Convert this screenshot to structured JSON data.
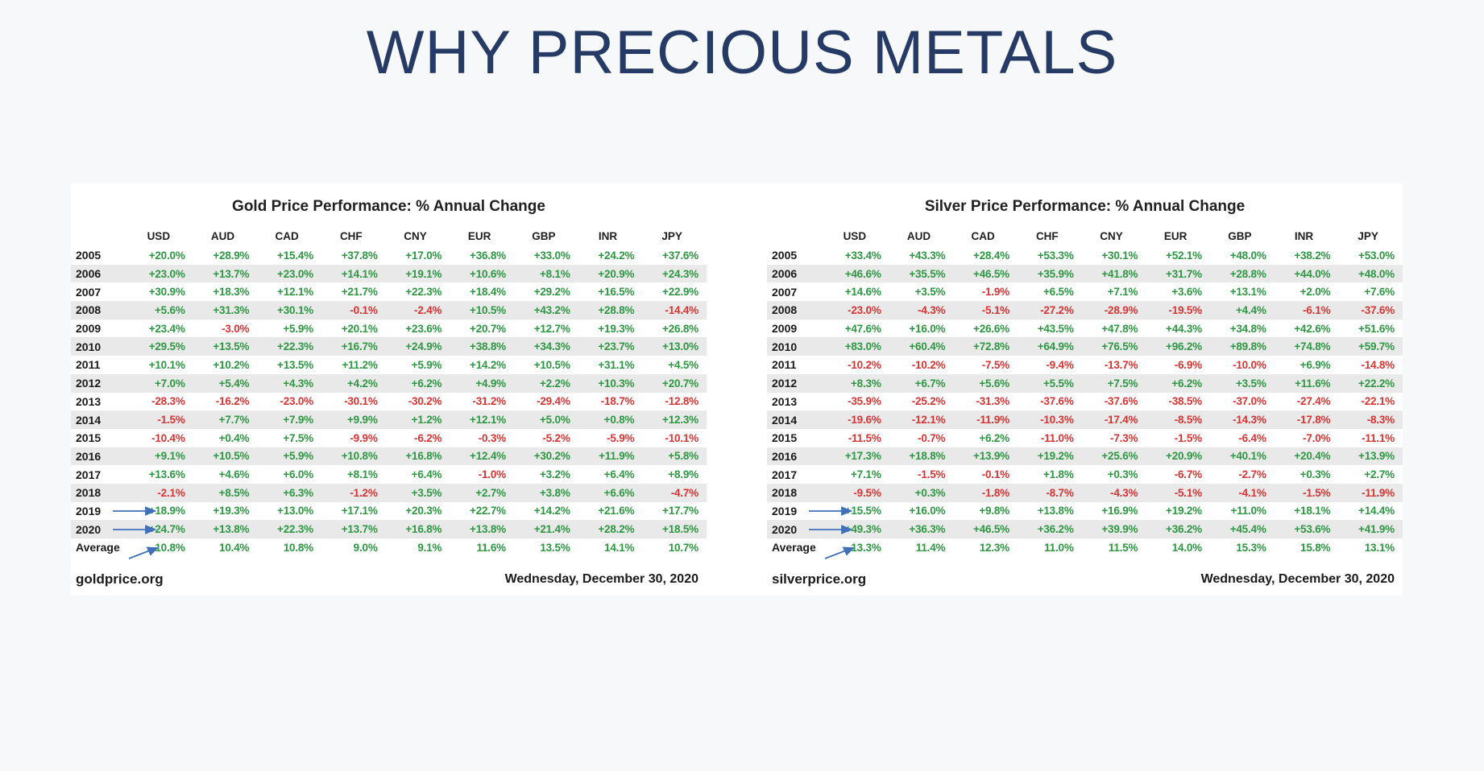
{
  "page": {
    "title": "WHY PRECIOUS METALS",
    "title_color": "#263a66",
    "background_color": "#f7f8fa",
    "panel_color": "#ffffff"
  },
  "colors": {
    "positive_value": "#2d9742",
    "negative_value": "#d93434",
    "row_stripe": "#e9e9e9",
    "annotation_arrow": "#4170b8"
  },
  "annotations": {
    "arrow_rows": [
      "2019",
      "2020",
      "Average"
    ]
  },
  "chart_data": [
    {
      "type": "table",
      "id": "gold",
      "title": "Gold Price Performance: % Annual Change",
      "source": "goldprice.org",
      "date": "Wednesday, December 30, 2020",
      "columns": [
        "USD",
        "AUD",
        "CAD",
        "CHF",
        "CNY",
        "EUR",
        "GBP",
        "INR",
        "JPY"
      ],
      "row_labels": [
        "2005",
        "2006",
        "2007",
        "2008",
        "2009",
        "2010",
        "2011",
        "2012",
        "2013",
        "2014",
        "2015",
        "2016",
        "2017",
        "2018",
        "2019",
        "2020",
        "Average"
      ],
      "rows": [
        [
          "+20.0%",
          "+28.9%",
          "+15.4%",
          "+37.8%",
          "+17.0%",
          "+36.8%",
          "+33.0%",
          "+24.2%",
          "+37.6%"
        ],
        [
          "+23.0%",
          "+13.7%",
          "+23.0%",
          "+14.1%",
          "+19.1%",
          "+10.6%",
          "+8.1%",
          "+20.9%",
          "+24.3%"
        ],
        [
          "+30.9%",
          "+18.3%",
          "+12.1%",
          "+21.7%",
          "+22.3%",
          "+18.4%",
          "+29.2%",
          "+16.5%",
          "+22.9%"
        ],
        [
          "+5.6%",
          "+31.3%",
          "+30.1%",
          "-0.1%",
          "-2.4%",
          "+10.5%",
          "+43.2%",
          "+28.8%",
          "-14.4%"
        ],
        [
          "+23.4%",
          "-3.0%",
          "+5.9%",
          "+20.1%",
          "+23.6%",
          "+20.7%",
          "+12.7%",
          "+19.3%",
          "+26.8%"
        ],
        [
          "+29.5%",
          "+13.5%",
          "+22.3%",
          "+16.7%",
          "+24.9%",
          "+38.8%",
          "+34.3%",
          "+23.7%",
          "+13.0%"
        ],
        [
          "+10.1%",
          "+10.2%",
          "+13.5%",
          "+11.2%",
          "+5.9%",
          "+14.2%",
          "+10.5%",
          "+31.1%",
          "+4.5%"
        ],
        [
          "+7.0%",
          "+5.4%",
          "+4.3%",
          "+4.2%",
          "+6.2%",
          "+4.9%",
          "+2.2%",
          "+10.3%",
          "+20.7%"
        ],
        [
          "-28.3%",
          "-16.2%",
          "-23.0%",
          "-30.1%",
          "-30.2%",
          "-31.2%",
          "-29.4%",
          "-18.7%",
          "-12.8%"
        ],
        [
          "-1.5%",
          "+7.7%",
          "+7.9%",
          "+9.9%",
          "+1.2%",
          "+12.1%",
          "+5.0%",
          "+0.8%",
          "+12.3%"
        ],
        [
          "-10.4%",
          "+0.4%",
          "+7.5%",
          "-9.9%",
          "-6.2%",
          "-0.3%",
          "-5.2%",
          "-5.9%",
          "-10.1%"
        ],
        [
          "+9.1%",
          "+10.5%",
          "+5.9%",
          "+10.8%",
          "+16.8%",
          "+12.4%",
          "+30.2%",
          "+11.9%",
          "+5.8%"
        ],
        [
          "+13.6%",
          "+4.6%",
          "+6.0%",
          "+8.1%",
          "+6.4%",
          "-1.0%",
          "+3.2%",
          "+6.4%",
          "+8.9%"
        ],
        [
          "-2.1%",
          "+8.5%",
          "+6.3%",
          "-1.2%",
          "+3.5%",
          "+2.7%",
          "+3.8%",
          "+6.6%",
          "-4.7%"
        ],
        [
          "+18.9%",
          "+19.3%",
          "+13.0%",
          "+17.1%",
          "+20.3%",
          "+22.7%",
          "+14.2%",
          "+21.6%",
          "+17.7%"
        ],
        [
          "+24.7%",
          "+13.8%",
          "+22.3%",
          "+13.7%",
          "+16.8%",
          "+13.8%",
          "+21.4%",
          "+28.2%",
          "+18.5%"
        ],
        [
          "10.8%",
          "10.4%",
          "10.8%",
          "9.0%",
          "9.1%",
          "11.6%",
          "13.5%",
          "14.1%",
          "10.7%"
        ]
      ]
    },
    {
      "type": "table",
      "id": "silver",
      "title": "Silver Price Performance: % Annual Change",
      "source": "silverprice.org",
      "date": "Wednesday, December 30, 2020",
      "columns": [
        "USD",
        "AUD",
        "CAD",
        "CHF",
        "CNY",
        "EUR",
        "GBP",
        "INR",
        "JPY"
      ],
      "row_labels": [
        "2005",
        "2006",
        "2007",
        "2008",
        "2009",
        "2010",
        "2011",
        "2012",
        "2013",
        "2014",
        "2015",
        "2016",
        "2017",
        "2018",
        "2019",
        "2020",
        "Average"
      ],
      "rows": [
        [
          "+33.4%",
          "+43.3%",
          "+28.4%",
          "+53.3%",
          "+30.1%",
          "+52.1%",
          "+48.0%",
          "+38.2%",
          "+53.0%"
        ],
        [
          "+46.6%",
          "+35.5%",
          "+46.5%",
          "+35.9%",
          "+41.8%",
          "+31.7%",
          "+28.8%",
          "+44.0%",
          "+48.0%"
        ],
        [
          "+14.6%",
          "+3.5%",
          "-1.9%",
          "+6.5%",
          "+7.1%",
          "+3.6%",
          "+13.1%",
          "+2.0%",
          "+7.6%"
        ],
        [
          "-23.0%",
          "-4.3%",
          "-5.1%",
          "-27.2%",
          "-28.9%",
          "-19.5%",
          "+4.4%",
          "-6.1%",
          "-37.6%"
        ],
        [
          "+47.6%",
          "+16.0%",
          "+26.6%",
          "+43.5%",
          "+47.8%",
          "+44.3%",
          "+34.8%",
          "+42.6%",
          "+51.6%"
        ],
        [
          "+83.0%",
          "+60.4%",
          "+72.8%",
          "+64.9%",
          "+76.5%",
          "+96.2%",
          "+89.8%",
          "+74.8%",
          "+59.7%"
        ],
        [
          "-10.2%",
          "-10.2%",
          "-7.5%",
          "-9.4%",
          "-13.7%",
          "-6.9%",
          "-10.0%",
          "+6.9%",
          "-14.8%"
        ],
        [
          "+8.3%",
          "+6.7%",
          "+5.6%",
          "+5.5%",
          "+7.5%",
          "+6.2%",
          "+3.5%",
          "+11.6%",
          "+22.2%"
        ],
        [
          "-35.9%",
          "-25.2%",
          "-31.3%",
          "-37.6%",
          "-37.6%",
          "-38.5%",
          "-37.0%",
          "-27.4%",
          "-22.1%"
        ],
        [
          "-19.6%",
          "-12.1%",
          "-11.9%",
          "-10.3%",
          "-17.4%",
          "-8.5%",
          "-14.3%",
          "-17.8%",
          "-8.3%"
        ],
        [
          "-11.5%",
          "-0.7%",
          "+6.2%",
          "-11.0%",
          "-7.3%",
          "-1.5%",
          "-6.4%",
          "-7.0%",
          "-11.1%"
        ],
        [
          "+17.3%",
          "+18.8%",
          "+13.9%",
          "+19.2%",
          "+25.6%",
          "+20.9%",
          "+40.1%",
          "+20.4%",
          "+13.9%"
        ],
        [
          "+7.1%",
          "-1.5%",
          "-0.1%",
          "+1.8%",
          "+0.3%",
          "-6.7%",
          "-2.7%",
          "+0.3%",
          "+2.7%"
        ],
        [
          "-9.5%",
          "+0.3%",
          "-1.8%",
          "-8.7%",
          "-4.3%",
          "-5.1%",
          "-4.1%",
          "-1.5%",
          "-11.9%"
        ],
        [
          "+15.5%",
          "+16.0%",
          "+9.8%",
          "+13.8%",
          "+16.9%",
          "+19.2%",
          "+11.0%",
          "+18.1%",
          "+14.4%"
        ],
        [
          "+49.3%",
          "+36.3%",
          "+46.5%",
          "+36.2%",
          "+39.9%",
          "+36.2%",
          "+45.4%",
          "+53.6%",
          "+41.9%"
        ],
        [
          "13.3%",
          "11.4%",
          "12.3%",
          "11.0%",
          "11.5%",
          "14.0%",
          "15.3%",
          "15.8%",
          "13.1%"
        ]
      ]
    }
  ]
}
